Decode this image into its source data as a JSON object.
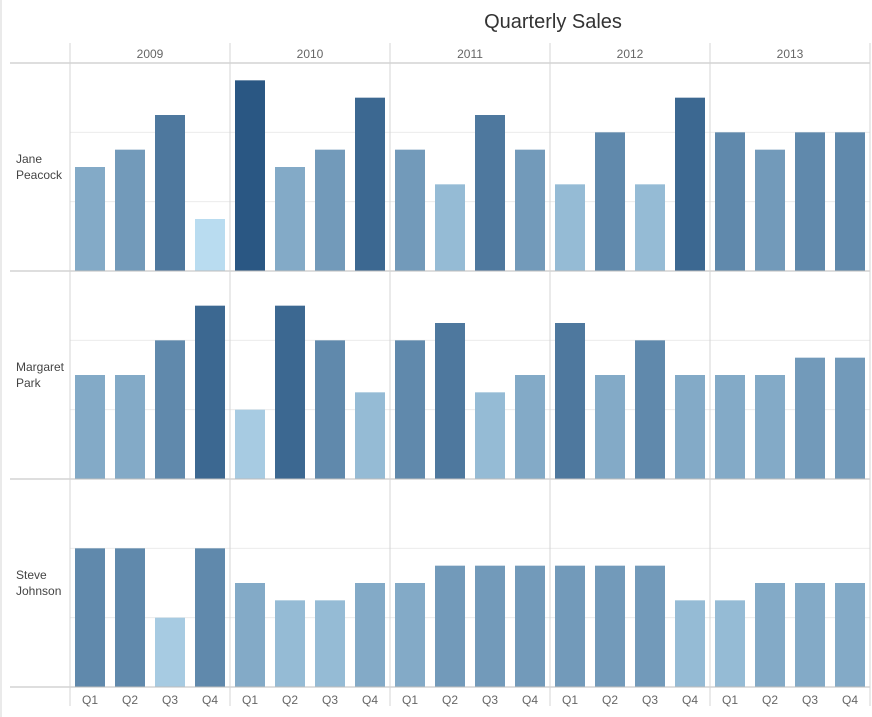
{
  "chart_data": {
    "type": "bar",
    "title": "Quarterly Sales",
    "years": [
      "2009",
      "2010",
      "2011",
      "2012",
      "2013"
    ],
    "quarters": [
      "Q1",
      "Q2",
      "Q3",
      "Q4"
    ],
    "ylim": [
      0,
      12
    ],
    "grid": true,
    "color_scale": {
      "low": "#b9dcf0",
      "high": "#2a5783"
    },
    "rows": [
      {
        "name": "Jane Peacock",
        "name_lines": [
          "Jane",
          "Peacock"
        ],
        "values": [
          6,
          7,
          9,
          3,
          11,
          6,
          7,
          10,
          7,
          5,
          9,
          7,
          5,
          8,
          5,
          10,
          8,
          7,
          8,
          8
        ]
      },
      {
        "name": "Margaret Park",
        "name_lines": [
          "Margaret",
          "Park"
        ],
        "values": [
          6,
          6,
          8,
          10,
          4,
          10,
          8,
          5,
          8,
          9,
          5,
          6,
          9,
          6,
          8,
          6,
          6,
          6,
          7,
          7
        ]
      },
      {
        "name": "Steve Johnson",
        "name_lines": [
          "Steve",
          "Johnson"
        ],
        "values": [
          8,
          8,
          4,
          8,
          6,
          5,
          5,
          6,
          6,
          7,
          7,
          7,
          7,
          7,
          7,
          5,
          5,
          6,
          6,
          6
        ]
      }
    ]
  }
}
